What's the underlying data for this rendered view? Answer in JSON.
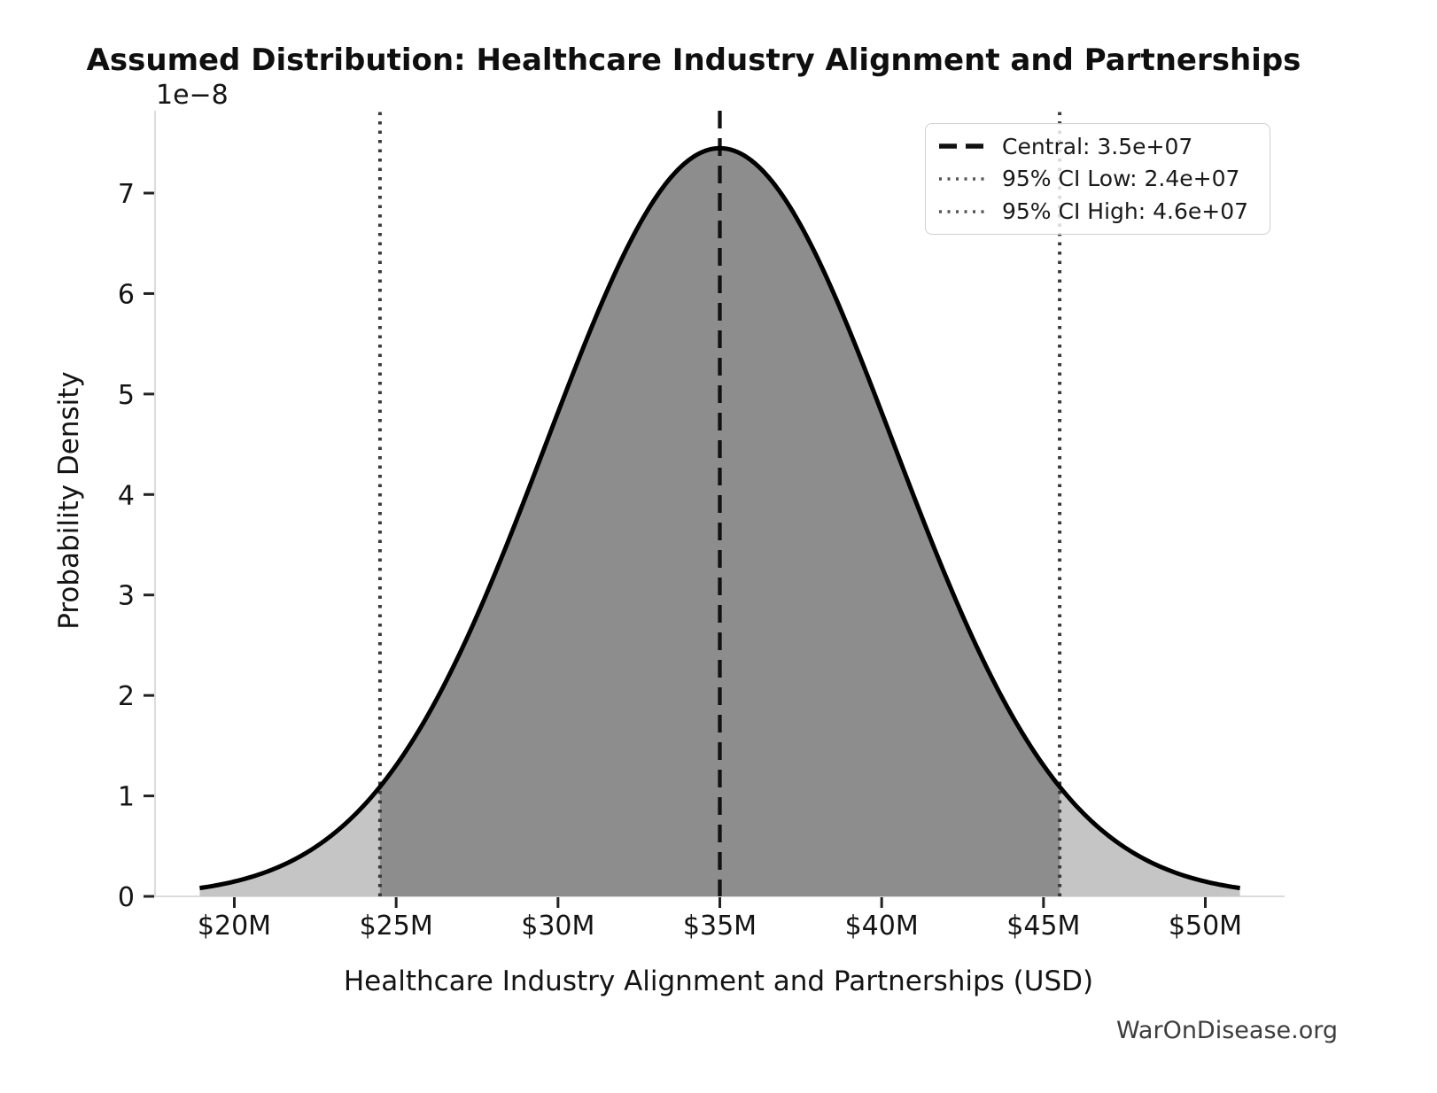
{
  "chart_data": {
    "type": "area",
    "title": "Assumed Distribution: Healthcare Industry Alignment and Partnerships",
    "xlabel": "Healthcare Industry Alignment and Partnerships (USD)",
    "ylabel": "Probability Density",
    "y_axis_offset": "1e−8",
    "watermark": "WarOnDisease.org",
    "distribution": {
      "kind": "normal",
      "mean": 35000000,
      "sigma": 5357000,
      "peak_density": 7.447e-08,
      "x_range": [
        18930000,
        51070000
      ]
    },
    "central": {
      "value": 35000000,
      "label": "Central: 3.5e+07"
    },
    "ci_low": {
      "value": 24500000,
      "label": "95% CI Low: 2.4e+07"
    },
    "ci_high": {
      "value": 45500000,
      "label": "95% CI High: 4.6e+07"
    },
    "xlim": [
      17550000,
      52450000
    ],
    "ylim": [
      0,
      7.82e-08
    ],
    "xticks": {
      "values": [
        20000000,
        25000000,
        30000000,
        35000000,
        40000000,
        45000000,
        50000000
      ],
      "labels": [
        "$20M",
        "$25M",
        "$30M",
        "$35M",
        "$40M",
        "$45M",
        "$50M"
      ]
    },
    "yticks": {
      "values": [
        0,
        1e-08,
        2e-08,
        3e-08,
        4e-08,
        5e-08,
        6e-08,
        7e-08
      ],
      "labels": [
        "0",
        "1",
        "2",
        "3",
        "4",
        "5",
        "6",
        "7"
      ]
    },
    "grid": false,
    "legend_position": "upper right",
    "legend": [
      {
        "style": "dashed",
        "color": "#111111",
        "label": "Central: 3.5e+07"
      },
      {
        "style": "dotted",
        "color": "#555555",
        "label": "95% CI Low: 2.4e+07"
      },
      {
        "style": "dotted",
        "color": "#555555",
        "label": "95% CI High: 4.6e+07"
      }
    ],
    "colors": {
      "curve": "#000000",
      "fill_central": "#8d8d8d",
      "fill_tail": "#c5c5c5",
      "central_line": "#111111",
      "ci_line": "#3a3a3a",
      "spine": "#dcdcdc",
      "tick": "#222222",
      "text": "#141414",
      "watermark": "#3d3d3d",
      "legend_border": "#d0d0d0"
    }
  }
}
